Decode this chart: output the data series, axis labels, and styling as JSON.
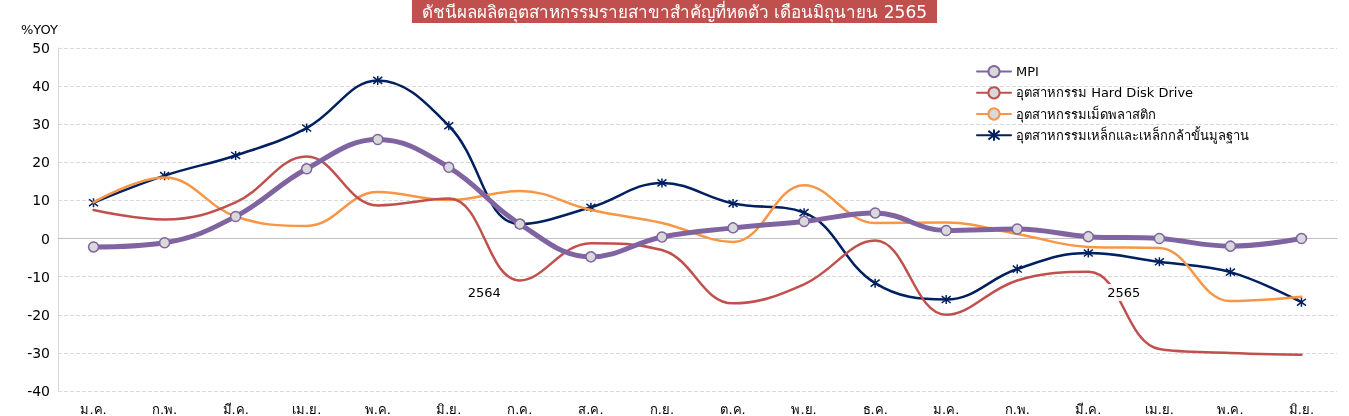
{
  "chart_data": {
    "type": "line",
    "title": "ดัชนีผลผลิตอุตสาหกรรมรายสาขาสำคัญที่หดตัว เดือนมิถุนายน 2565",
    "ylabel": "%YOY",
    "categories": [
      "ม.ค.",
      "ก.พ.",
      "มี.ค.",
      "เม.ย.",
      "พ.ค.",
      "มิ.ย.",
      "ก.ค.",
      "ส.ค.",
      "ก.ย.",
      "ต.ค.",
      "พ.ย.",
      "ธ.ค.",
      "ม.ค.",
      "ก.พ.",
      "มี.ค.",
      "เม.ย.",
      "พ.ค.",
      "มิ.ย."
    ],
    "series": [
      {
        "name": "MPI",
        "color": "#8064a2",
        "marker": "circle",
        "values": [
          -2.2,
          -1.1,
          5.8,
          18.3,
          26,
          18.7,
          3.8,
          -4.8,
          0.4,
          2.8,
          4.5,
          6.7,
          2.1,
          2.5,
          0.5,
          0,
          -2,
          0
        ]
      },
      {
        "name": "อุตสาหกรรม Hard Disk Drive",
        "color": "#c0504d",
        "marker": "none",
        "values": [
          7.5,
          5,
          9.5,
          21.5,
          8.7,
          10.5,
          -11,
          -1.2,
          -3,
          -17,
          -12,
          -0.5,
          -20,
          -11,
          -8.7,
          -29,
          -30,
          -30.5
        ]
      },
      {
        "name": "อุตสาหกรรมเม็ดพลาสติก",
        "color": "#f79646",
        "marker": "none",
        "values": [
          9.5,
          16,
          5.8,
          3.3,
          12.2,
          10.1,
          12.5,
          7.5,
          4.1,
          -0.9,
          14,
          4.1,
          4.2,
          1.2,
          -2.2,
          -2.5,
          -16.4,
          -15.3
        ]
      },
      {
        "name": "อุตสาหกรรมเหล็กและเหล็กกล้าขั้นมูลฐาน",
        "color": "#002060",
        "marker": "cross",
        "values": [
          9.4,
          16.5,
          21.8,
          29,
          41.5,
          29.6,
          3.8,
          8.2,
          14.6,
          9.2,
          6.8,
          -11.7,
          -16,
          -8,
          -3.8,
          -6.1,
          -8.8,
          -16.7
        ]
      }
    ],
    "ylim": [
      -40,
      50
    ],
    "yticks": [
      -40,
      -30,
      -20,
      -10,
      0,
      10,
      20,
      30,
      40,
      50
    ],
    "grid": "y",
    "legend": "top right",
    "annotations": [
      "2564",
      "2565"
    ]
  }
}
